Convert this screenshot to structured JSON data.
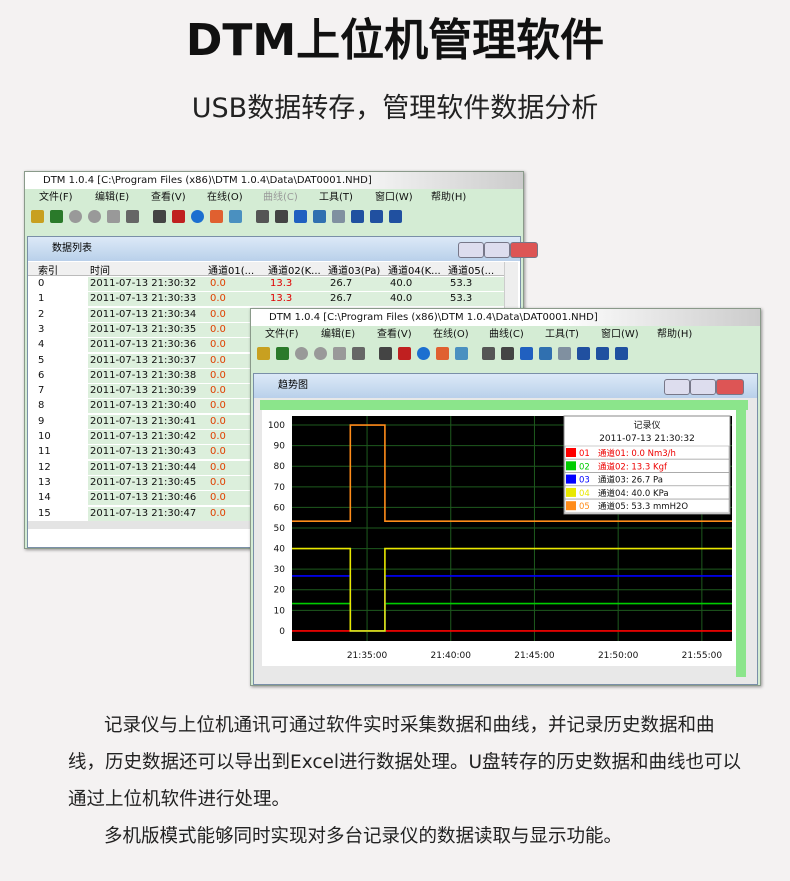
{
  "header": {
    "title": "DTM上位机管理软件",
    "subtitle": "USB数据转存，管理软件数据分析"
  },
  "window_list": {
    "title": "DTM 1.0.4 [C:\\Program Files (x86)\\DTM 1.0.4\\Data\\DAT0001.NHD]",
    "menu": [
      "文件(F)",
      "编辑(E)",
      "查看(V)",
      "在线(O)",
      "曲线(C)",
      "工具(T)",
      "窗口(W)",
      "帮助(H)"
    ],
    "panel_title": "数据列表",
    "table": {
      "columns": [
        "索引",
        "时间",
        "通道01(...",
        "通道02(K...",
        "通道03(Pa)",
        "通道04(K...",
        "通道05(..."
      ],
      "rows": [
        [
          "0",
          "2011-07-13 21:30:32",
          "0.0",
          "13.3",
          "26.7",
          "40.0",
          "53.3"
        ],
        [
          "1",
          "2011-07-13 21:30:33",
          "0.0",
          "13.3",
          "26.7",
          "40.0",
          "53.3"
        ],
        [
          "2",
          "2011-07-13 21:30:34",
          "0.0"
        ],
        [
          "3",
          "2011-07-13 21:30:35",
          "0.0"
        ],
        [
          "4",
          "2011-07-13 21:30:36",
          "0.0"
        ],
        [
          "5",
          "2011-07-13 21:30:37",
          "0.0"
        ],
        [
          "6",
          "2011-07-13 21:30:38",
          "0.0"
        ],
        [
          "7",
          "2011-07-13 21:30:39",
          "0.0"
        ],
        [
          "8",
          "2011-07-13 21:30:40",
          "0.0"
        ],
        [
          "9",
          "2011-07-13 21:30:41",
          "0.0"
        ],
        [
          "10",
          "2011-07-13 21:30:42",
          "0.0"
        ],
        [
          "11",
          "2011-07-13 21:30:43",
          "0.0"
        ],
        [
          "12",
          "2011-07-13 21:30:44",
          "0.0"
        ],
        [
          "13",
          "2011-07-13 21:30:45",
          "0.0"
        ],
        [
          "14",
          "2011-07-13 21:30:46",
          "0.0"
        ],
        [
          "15",
          "2011-07-13 21:30:47",
          "0.0"
        ]
      ]
    }
  },
  "window_trend": {
    "title": "DTM 1.0.4 [C:\\Program Files (x86)\\DTM 1.0.4\\Data\\DAT0001.NHD]",
    "menu": [
      "文件(F)",
      "编辑(E)",
      "查看(V)",
      "在线(O)",
      "曲线(C)",
      "工具(T)",
      "窗口(W)",
      "帮助(H)"
    ],
    "panel_title": "趋势图",
    "chart_data": {
      "type": "line",
      "grid": true,
      "xlim": [
        77431,
        79008
      ],
      "ylim": [
        -4.9,
        104.4
      ],
      "xticks": [
        {
          "value": 77700,
          "label": "21:35:00"
        },
        {
          "value": 78000,
          "label": "21:40:00"
        },
        {
          "value": 78300,
          "label": "21:45:00"
        },
        {
          "value": 78600,
          "label": "21:50:00"
        },
        {
          "value": 78900,
          "label": "21:55:00"
        }
      ],
      "yticks": [
        0,
        10,
        20,
        30,
        40,
        50,
        60,
        70,
        80,
        90,
        100
      ],
      "x": [
        77431,
        77640,
        77640,
        77764,
        77764,
        79008
      ],
      "legend_title": "记录仪",
      "legend_time": "2011-07-13 21:30:32",
      "series": [
        {
          "name": "01",
          "label": "通道01: 0.0 Nm3/h",
          "color": "#ff0000",
          "values": [
            0,
            0,
            0,
            0,
            0,
            0
          ]
        },
        {
          "name": "02",
          "label": "通道02: 13.3 Kgf",
          "color": "#00cc00",
          "values": [
            13.3,
            13.3,
            0,
            0,
            13.3,
            13.3
          ]
        },
        {
          "name": "03",
          "label": "通道03: 26.7 Pa",
          "color": "#0000ff",
          "values": [
            26.7,
            26.7,
            0,
            0,
            26.7,
            26.7
          ]
        },
        {
          "name": "04",
          "label": "通道04: 40.0 KPa",
          "color": "#e8e800",
          "values": [
            40,
            40,
            0,
            0,
            40,
            40
          ]
        },
        {
          "name": "05",
          "label": "通道05: 53.3 mmH2O",
          "color": "#ff8c1a",
          "values": [
            53.3,
            53.3,
            100,
            100,
            53.3,
            53.3
          ]
        }
      ]
    }
  },
  "body": {
    "paragraphs": [
      "记录仪与上位机通讯可通过软件实时采集数据和曲线，并记录历史数据和曲线，历史数据还可以导出到Excel进行数据处理。U盘转存的历史数据和曲线也可以通过上位机软件进行处理。",
      "多机版模式能够同时实现对多台记录仪的数据读取与显示功能。"
    ]
  }
}
